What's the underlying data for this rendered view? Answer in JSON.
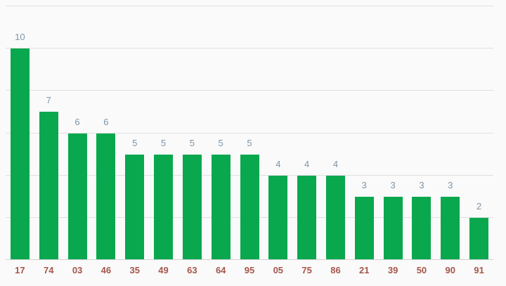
{
  "chart_data": {
    "type": "bar",
    "categories": [
      "17",
      "74",
      "03",
      "46",
      "35",
      "49",
      "63",
      "64",
      "95",
      "05",
      "75",
      "86",
      "21",
      "39",
      "50",
      "90",
      "91"
    ],
    "values": [
      10,
      7,
      6,
      6,
      5,
      5,
      5,
      5,
      5,
      4,
      4,
      4,
      3,
      3,
      3,
      3,
      2
    ],
    "title": "",
    "xlabel": "",
    "ylabel": "",
    "ylim": [
      0,
      12
    ],
    "grid_step": 2,
    "grid": true,
    "legend": "none",
    "y_tick_labels_shown": false,
    "bar_annotations_shown": true
  },
  "colors": {
    "bar": "#0aa84e",
    "value_label": "#7d95aa",
    "axis_label": "#a5554b",
    "background": "#fafafa",
    "gridline": "#e0e0e0",
    "baseline": "#d2d2d2"
  }
}
